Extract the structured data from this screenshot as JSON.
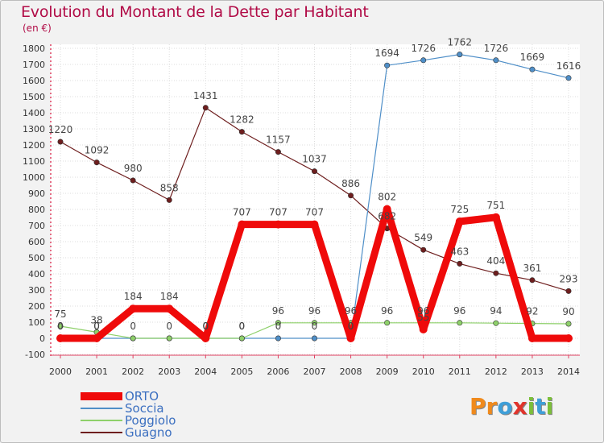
{
  "title": "Evolution du Montant de la Dette par Habitant",
  "unit": "(en €)",
  "logo": {
    "text": "Proxiti",
    "letters": [
      {
        "ch": "P",
        "color": "#f08a1c"
      },
      {
        "ch": "r",
        "color": "#f08a1c"
      },
      {
        "ch": "o",
        "color": "#3f9fd8"
      },
      {
        "ch": "x",
        "color": "#e0342c"
      },
      {
        "ch": "i",
        "color": "#7cbf3a"
      },
      {
        "ch": "t",
        "color": "#3f9fd8"
      },
      {
        "ch": "i",
        "color": "#7cbf3a"
      }
    ]
  },
  "chart_data": {
    "type": "line",
    "title": "Evolution du Montant de la Dette par Habitant",
    "ylabel": "(en €)",
    "x": [
      "2000",
      "2001",
      "2002",
      "2003",
      "2004",
      "2005",
      "2006",
      "2007",
      "2008",
      "2009",
      "2010",
      "2011",
      "2012",
      "2013",
      "2014"
    ],
    "yticks": [
      "-100",
      "0",
      "100",
      "200",
      "300",
      "400",
      "500",
      "600",
      "700",
      "800",
      "900",
      "1000",
      "1100",
      "1200",
      "1300",
      "1400",
      "1500",
      "1600",
      "1700",
      "1800"
    ],
    "ylim": [
      -100,
      1800
    ],
    "grid": true,
    "legend_position": "bottom-left",
    "series": [
      {
        "name": "Guagno",
        "color": "#6e1e1e",
        "values": [
          1220,
          1092,
          980,
          858,
          1431,
          1282,
          1157,
          1037,
          886,
          682,
          549,
          463,
          404,
          361,
          293
        ],
        "labels": [
          "1220",
          "1092",
          "980",
          "858",
          "1431",
          "1282",
          "1157",
          "1037",
          "886",
          "682",
          "549",
          "463",
          "404",
          "361",
          "293"
        ]
      },
      {
        "name": "Soccia",
        "color": "#4f8fc8",
        "values": [
          0,
          0,
          0,
          0,
          0,
          0,
          0,
          0,
          0,
          1694,
          1726,
          1762,
          1726,
          1669,
          1616
        ],
        "labels": [
          "0",
          "0",
          "",
          "",
          "0",
          "0",
          "0",
          "0",
          "0",
          "1694",
          "1726",
          "1762",
          "1726",
          "1669",
          "1616"
        ]
      },
      {
        "name": "Poggiolo",
        "color": "#8ed06a",
        "values": [
          75,
          38,
          0,
          0,
          0,
          0,
          96,
          96,
          96,
          96,
          96,
          96,
          94,
          92,
          90
        ],
        "labels": [
          "75",
          "38",
          "0",
          "0",
          "0",
          "0",
          "96",
          "96",
          "96",
          "96",
          "96",
          "96",
          "94",
          "92",
          "90"
        ]
      },
      {
        "name": "ORTO",
        "color": "#ef0a0a",
        "values": [
          0,
          0,
          184,
          184,
          0,
          707,
          707,
          707,
          0,
          802,
          55,
          725,
          751,
          0,
          0
        ],
        "labels": [
          "0",
          "0",
          "184",
          "184",
          "0",
          "707",
          "707",
          "707",
          "0",
          "802",
          "55",
          "725",
          "751",
          "",
          ""
        ]
      }
    ]
  }
}
